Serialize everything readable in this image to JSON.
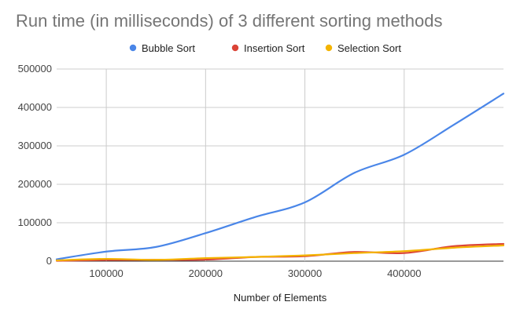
{
  "chart_data": {
    "type": "line",
    "title": "Run time (in milliseconds) of 3 different sorting methods",
    "xlabel": "Number of Elements",
    "ylabel": "",
    "xlim": [
      50000,
      500000
    ],
    "ylim": [
      0,
      500000
    ],
    "x_ticks": [
      "100000",
      "200000",
      "300000",
      "400000"
    ],
    "y_ticks": [
      "0",
      "100000",
      "200000",
      "300000",
      "400000",
      "500000"
    ],
    "grid": true,
    "legend_position": "top",
    "x": [
      50000,
      100000,
      150000,
      200000,
      250000,
      300000,
      350000,
      400000,
      450000,
      500000
    ],
    "series": [
      {
        "name": "Bubble Sort",
        "color": "#4a86e8",
        "values": [
          5000,
          25000,
          37000,
          73000,
          115000,
          153000,
          230000,
          277000,
          355000,
          436000
        ]
      },
      {
        "name": "Insertion Sort",
        "color": "#db4437",
        "values": [
          1000,
          3000,
          3500,
          4000,
          11000,
          13000,
          24000,
          21000,
          39000,
          45000
        ]
      },
      {
        "name": "Selection Sort",
        "color": "#f4b400",
        "values": [
          2000,
          6000,
          3500,
          8000,
          11000,
          15000,
          21000,
          26000,
          35000,
          41000
        ]
      }
    ]
  }
}
